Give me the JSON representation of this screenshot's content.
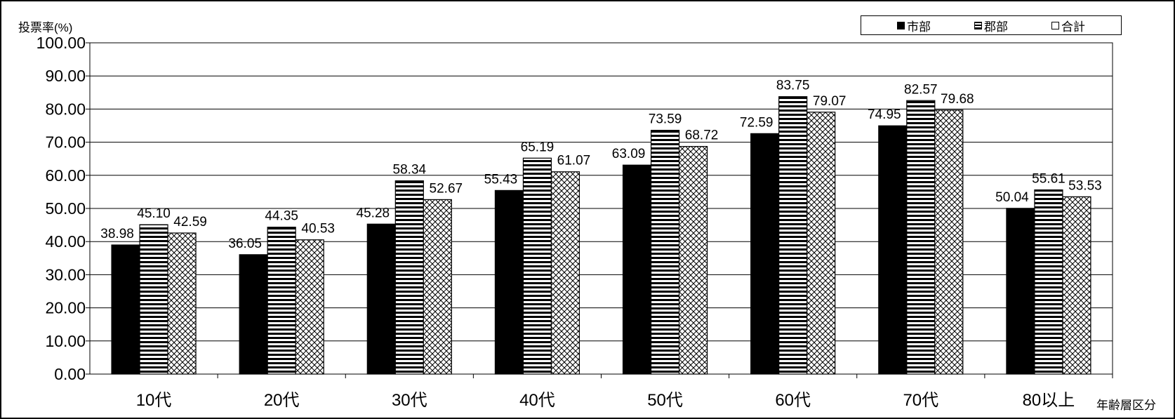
{
  "chart_data": {
    "type": "bar",
    "ylabel": "投票率(%)",
    "xlabel": "年齢層区分",
    "ylim": [
      0,
      100
    ],
    "yticks": [
      "0.00",
      "10.00",
      "20.00",
      "30.00",
      "40.00",
      "50.00",
      "60.00",
      "70.00",
      "80.00",
      "90.00",
      "100.00"
    ],
    "grid": "horizontal",
    "legend_position": "top-right",
    "categories": [
      "10代",
      "20代",
      "30代",
      "40代",
      "50代",
      "60代",
      "70代",
      "80以上"
    ],
    "series": [
      {
        "name": "市部",
        "pattern": "solid",
        "values": [
          38.98,
          36.05,
          45.28,
          55.43,
          63.09,
          72.59,
          74.95,
          50.04
        ],
        "labels": [
          "38.98",
          "36.05",
          "45.28",
          "55.43",
          "63.09",
          "72.59",
          "74.95",
          "50.04"
        ]
      },
      {
        "name": "郡部",
        "pattern": "horizontal-stripes",
        "values": [
          45.1,
          44.35,
          58.34,
          65.19,
          73.59,
          83.75,
          82.57,
          55.61
        ],
        "labels": [
          "45.10",
          "44.35",
          "58.34",
          "65.19",
          "73.59",
          "83.75",
          "82.57",
          "55.61"
        ]
      },
      {
        "name": "合計",
        "pattern": "crosshatch",
        "values": [
          42.59,
          40.53,
          52.67,
          61.07,
          68.72,
          79.07,
          79.68,
          53.53
        ],
        "labels": [
          "42.59",
          "40.53",
          "52.67",
          "61.07",
          "68.72",
          "79.07",
          "79.68",
          "53.53"
        ]
      }
    ],
    "colors": {
      "bar": "#000000",
      "background": "#ffffff"
    }
  }
}
